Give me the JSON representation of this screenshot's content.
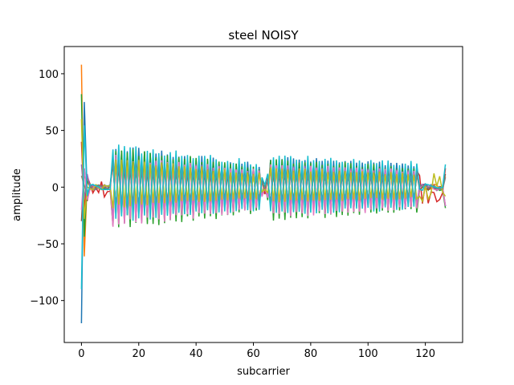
{
  "chart_data": {
    "type": "line",
    "title": "steel NOISY",
    "xlabel": "subcarrier",
    "ylabel": "amplitude",
    "xlim": [
      -6,
      133
    ],
    "ylim": [
      -137,
      124
    ],
    "xticks": [
      0,
      20,
      40,
      60,
      80,
      100,
      120
    ],
    "yticks": [
      -100,
      -50,
      0,
      50,
      100
    ],
    "xtick_labels": [
      "0",
      "20",
      "40",
      "60",
      "80",
      "100",
      "120"
    ],
    "ytick_labels": [
      "−100",
      "−50",
      "0",
      "50",
      "100"
    ],
    "grid": false,
    "x_range": [
      0,
      127
    ],
    "null_subcarriers": [
      1,
      2,
      3,
      4,
      5,
      6,
      7,
      8,
      9,
      10,
      64,
      118,
      119,
      120,
      121,
      122,
      123,
      124,
      125,
      126
    ],
    "series_count": 10,
    "colors": [
      "#1f77b4",
      "#ff7f0e",
      "#2ca02c",
      "#d62728",
      "#9467bd",
      "#8c564b",
      "#e377c2",
      "#7f7f7f",
      "#bcbd22",
      "#17becf"
    ],
    "series_envelopes": [
      {
        "color": "#1f77b4",
        "x0": -120,
        "upper_start": 37,
        "upper_end": 20,
        "lower_start": -30,
        "lower_end": -18
      },
      {
        "color": "#ff7f0e",
        "x0": 108,
        "upper_start": 22,
        "upper_end": 10,
        "lower_start": -20,
        "lower_end": -10
      },
      {
        "color": "#2ca02c",
        "x0": 82,
        "upper_start": 35,
        "upper_end": 18,
        "lower_start": -38,
        "lower_end": -22
      },
      {
        "color": "#d62728",
        "x0": 40,
        "upper_start": 30,
        "upper_end": 17,
        "lower_start": -25,
        "lower_end": -15
      },
      {
        "color": "#9467bd",
        "x0": 20,
        "upper_start": 25,
        "upper_end": 15,
        "lower_start": -28,
        "lower_end": -18
      },
      {
        "color": "#8c564b",
        "x0": -30,
        "upper_start": 20,
        "upper_end": 12,
        "lower_start": -22,
        "lower_end": -14
      },
      {
        "color": "#e377c2",
        "x0": -20,
        "upper_start": 28,
        "upper_end": 15,
        "lower_start": -35,
        "lower_end": -20
      },
      {
        "color": "#7f7f7f",
        "x0": 10,
        "upper_start": 22,
        "upper_end": 10,
        "lower_start": -20,
        "lower_end": -12
      },
      {
        "color": "#bcbd22",
        "x0": 60,
        "upper_start": 26,
        "upper_end": 12,
        "lower_start": -18,
        "lower_end": -10
      },
      {
        "color": "#17becf",
        "x0": -90,
        "upper_start": 38,
        "upper_end": 22,
        "lower_start": -30,
        "lower_end": -20
      }
    ]
  }
}
